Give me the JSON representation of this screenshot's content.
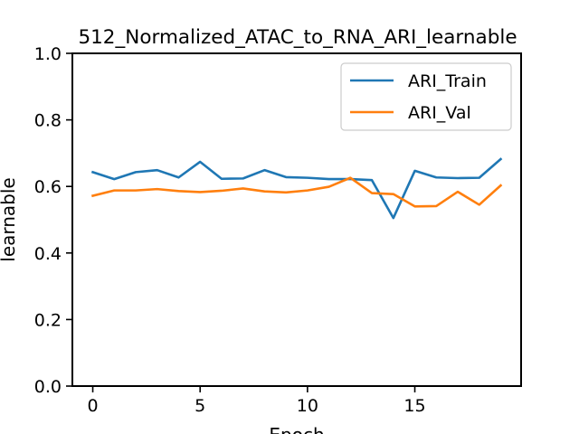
{
  "chart_data": {
    "type": "line",
    "title": "512_Normalized_ATAC_to_RNA_ARI_learnable",
    "xlabel": "Epoch",
    "ylabel": "learnable",
    "xlim": [
      -0.95,
      19.95
    ],
    "ylim": [
      0,
      1.0
    ],
    "xticks": [
      0,
      5,
      10,
      15
    ],
    "yticks": [
      0.0,
      0.2,
      0.4,
      0.6,
      0.8,
      1.0
    ],
    "xtick_labels": [
      "0",
      "5",
      "10",
      "15"
    ],
    "ytick_labels": [
      "0.0",
      "0.2",
      "0.4",
      "0.6",
      "0.8",
      "1.0"
    ],
    "legend_position": "top-right",
    "grid": false,
    "x": [
      0,
      1,
      2,
      3,
      4,
      5,
      6,
      7,
      8,
      9,
      10,
      11,
      12,
      13,
      14,
      15,
      16,
      17,
      18,
      19
    ],
    "series": [
      {
        "name": "ARI_Train",
        "color": "#1f77b4",
        "values": [
          0.643,
          0.622,
          0.643,
          0.649,
          0.627,
          0.674,
          0.623,
          0.624,
          0.649,
          0.628,
          0.626,
          0.622,
          0.622,
          0.619,
          0.505,
          0.647,
          0.627,
          0.625,
          0.626,
          0.682
        ]
      },
      {
        "name": "ARI_Val",
        "color": "#ff7f0e",
        "values": [
          0.572,
          0.588,
          0.588,
          0.592,
          0.586,
          0.583,
          0.587,
          0.594,
          0.585,
          0.582,
          0.588,
          0.599,
          0.626,
          0.58,
          0.577,
          0.54,
          0.541,
          0.584,
          0.545,
          0.603
        ]
      }
    ]
  }
}
